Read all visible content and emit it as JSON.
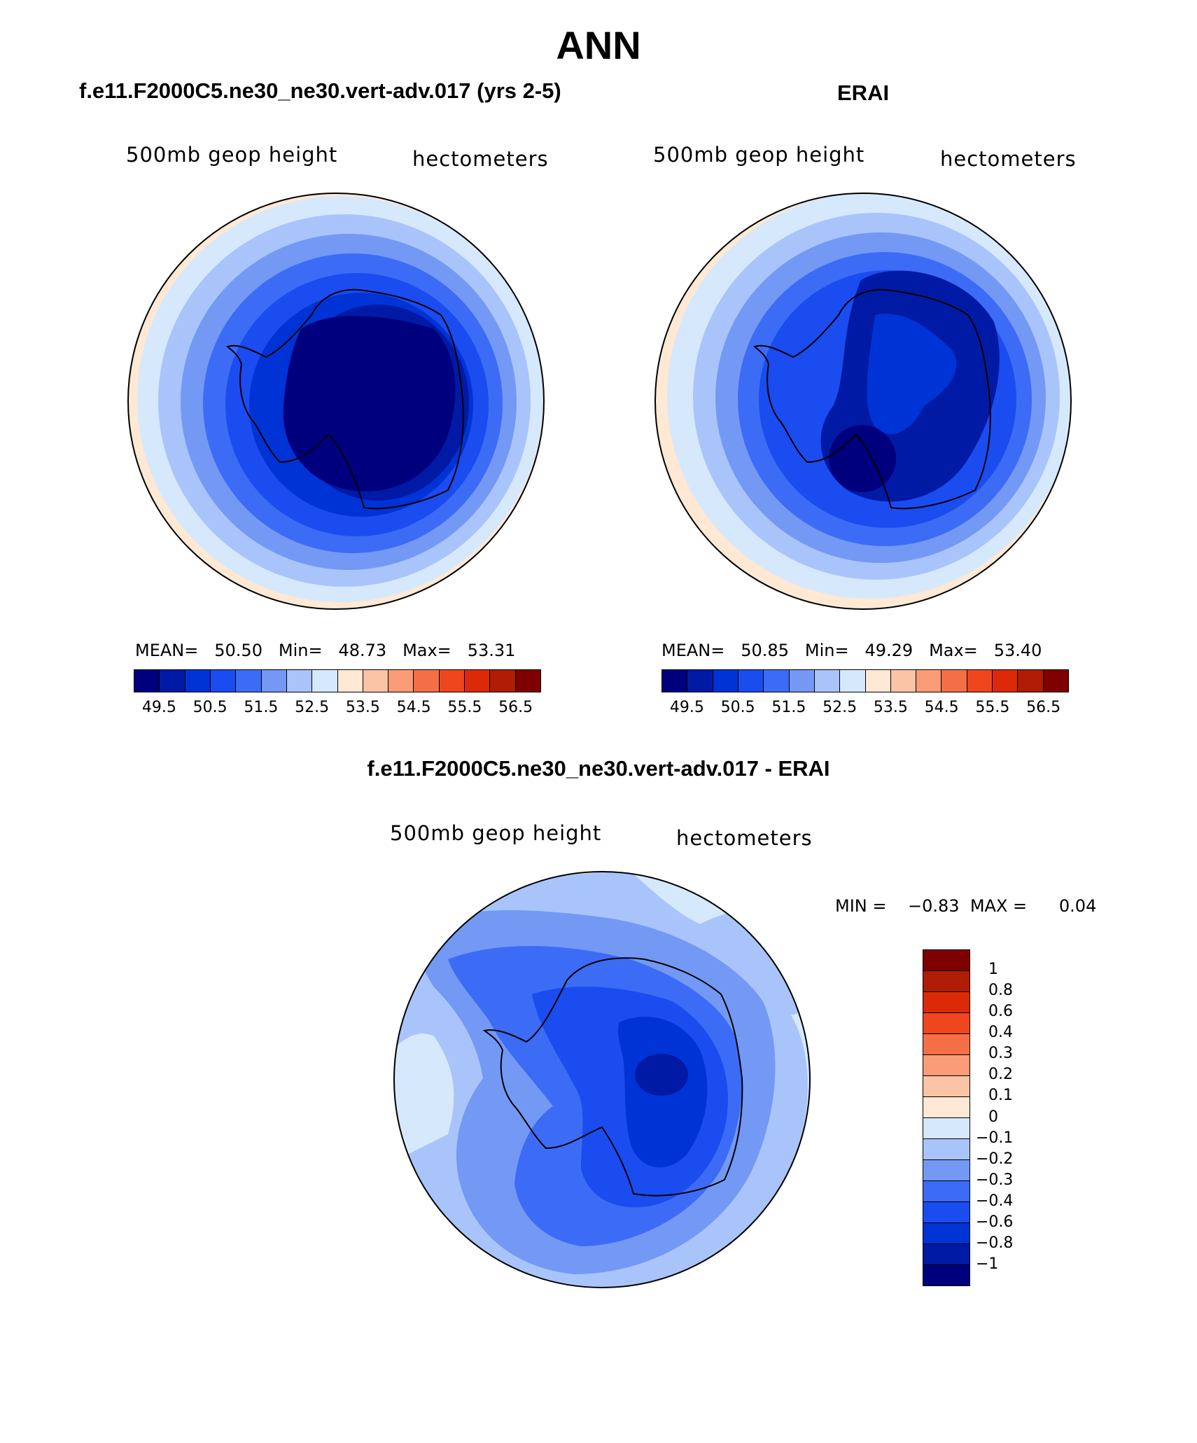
{
  "page_title": "ANN",
  "panels": {
    "left": {
      "title": "f.e11.F2000C5.ne30_ne30.vert-adv.017 (yrs 2-5)",
      "left_label": "500mb geop height",
      "right_label": "hectometers",
      "stats": {
        "mean_label": "MEAN=",
        "mean": "50.50",
        "min_label": "Min=",
        "min": "48.73",
        "max_label": "Max=",
        "max": "53.31"
      }
    },
    "right": {
      "title": "ERAI",
      "left_label": "500mb geop height",
      "right_label": "hectometers",
      "stats": {
        "mean_label": "MEAN=",
        "mean": "50.85",
        "min_label": "Min=",
        "min": "49.29",
        "max_label": "Max=",
        "max": "53.40"
      }
    },
    "diff": {
      "title": "f.e11.F2000C5.ne30_ne30.vert-adv.017 - ERAI",
      "left_label": "500mb geop height",
      "right_label": "hectometers",
      "stats": {
        "min_label": "MIN =",
        "min": "−0.83",
        "max_label": "MAX =",
        "max": "0.04"
      }
    }
  },
  "colorbar_main": {
    "ticks": [
      "49.5",
      "50.5",
      "51.5",
      "52.5",
      "53.5",
      "54.5",
      "55.5",
      "56.5"
    ],
    "colors": [
      "#00007f",
      "#001aa5",
      "#0033d6",
      "#1a4cf0",
      "#3c6cf5",
      "#7399f5",
      "#a9c4fb",
      "#d6e8fc",
      "#ffe8d4",
      "#fcc4a6",
      "#f99c77",
      "#f56f46",
      "#f0461e",
      "#dc2a08",
      "#b01c05",
      "#7f0000"
    ]
  },
  "colorbar_diff": {
    "ticks": [
      "1",
      "0.8",
      "0.6",
      "0.4",
      "0.3",
      "0.2",
      "0.1",
      "0",
      "−0.1",
      "−0.2",
      "−0.3",
      "−0.4",
      "−0.6",
      "−0.8",
      "−1"
    ],
    "colors": [
      "#7f0000",
      "#b01c05",
      "#dc2a08",
      "#f0461e",
      "#f56f46",
      "#f99c77",
      "#fcc4a6",
      "#ffe8d4",
      "#d6e8fc",
      "#a9c4fb",
      "#7399f5",
      "#3c6cf5",
      "#1a4cf0",
      "#0033d6",
      "#001aa5",
      "#00007f"
    ]
  }
}
